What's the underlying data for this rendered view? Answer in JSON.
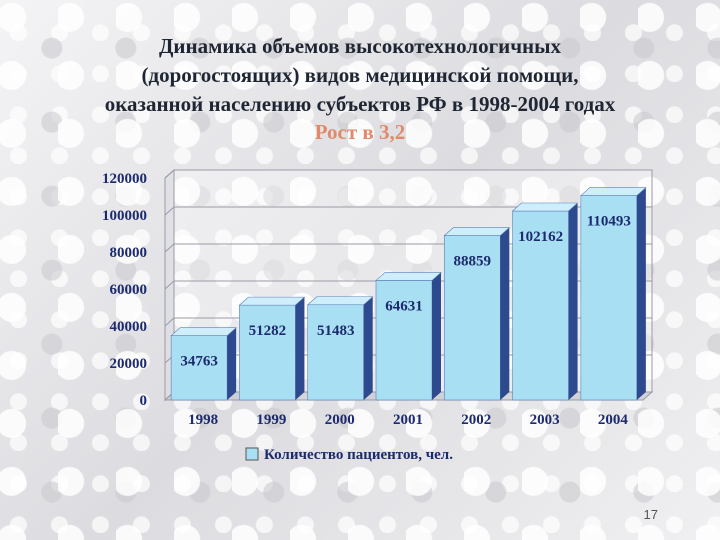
{
  "slide": {
    "title_lines": [
      "Динамика объемов высокотехнологичных",
      "(дорогостоящих) видов медицинской помощи,",
      "оказанной населению субъектов РФ в 1998-2004 годах"
    ],
    "subtitle": "Рост в 3,2",
    "page_number": "17"
  },
  "colors": {
    "bar_front": "#a9dff3",
    "bar_side": "#2e4a8e",
    "bar_top": "#cdeefa",
    "axis_text": "#1c2a6e",
    "title": "#1f2633",
    "subtitle": "#e08a6a"
  },
  "chart_data": {
    "type": "bar",
    "categories": [
      "1998",
      "1999",
      "2000",
      "2001",
      "2002",
      "2003",
      "2004"
    ],
    "series": [
      {
        "name": "Количество пациентов, чел.",
        "values": [
          34763,
          51282,
          51483,
          64631,
          88859,
          102162,
          110493
        ]
      }
    ],
    "value_labels": [
      "34763",
      "51282",
      "51483",
      "64631",
      "88859",
      "102162",
      "110493"
    ],
    "y_ticks": [
      "0",
      "20000",
      "40000",
      "60000",
      "80000",
      "100000",
      "120000"
    ],
    "ylim": [
      0,
      120000
    ],
    "grid": true,
    "legend_position": "bottom",
    "style": "3d-bar"
  }
}
